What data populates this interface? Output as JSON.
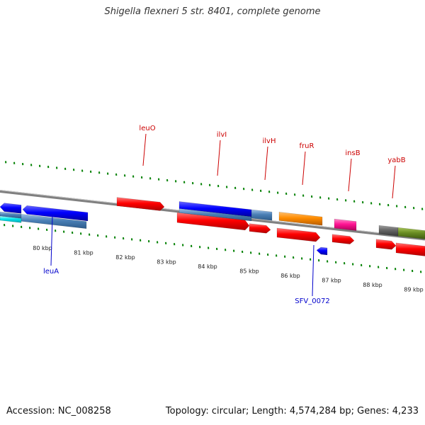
{
  "title": "Shigella flexneri 5 str. 8401, complete genome",
  "footer": {
    "accession": "Accession: NC_008258",
    "summary": "Topology: circular; Length: 4,574,284 bp; Genes: 4,233"
  },
  "colors": {
    "red": "#ff0000",
    "blue": "#0000ff",
    "steelblue": "#4a7fb5",
    "cyan": "#00e5ee",
    "orange": "#ff8c00",
    "magenta": "#ff1493",
    "olive": "#6b8e23",
    "gray": "#666666",
    "label_red": "#cc0000",
    "label_blue": "#0000cc",
    "tick_green": "#008000",
    "backbone": "#808080"
  },
  "ticks": [
    "80 kbp",
    "81 kbp",
    "82 kbp",
    "83 kbp",
    "84 kbp",
    "85 kbp",
    "86 kbp",
    "87 kbp",
    "88 kbp",
    "89 kbp"
  ],
  "labels": {
    "top": [
      "leuO",
      "ilvI",
      "ilvH",
      "fruR",
      "insB",
      "yabB"
    ],
    "bottom": [
      "leuA",
      "SFV_0072"
    ]
  }
}
